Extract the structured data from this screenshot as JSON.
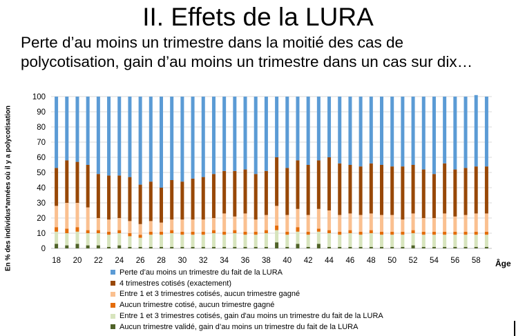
{
  "slide": {
    "title": "II. Effets de la LURA",
    "subtitle": "Perte d’au moins un trimestre dans la moitié des cas de polycotisation, gain d’au moins un trimestre dans un cas sur dix…"
  },
  "chart_data": {
    "type": "bar",
    "stacked": true,
    "ylabel": "En % des individus*années où il y a polycotisation",
    "xlabel": "Âge",
    "ylim": [
      0,
      100
    ],
    "yticks": [
      0,
      10,
      20,
      30,
      40,
      50,
      60,
      70,
      80,
      90,
      100
    ],
    "grid": true,
    "legend_position": "bottom",
    "x": [
      18,
      19,
      20,
      21,
      22,
      23,
      24,
      25,
      26,
      27,
      28,
      29,
      30,
      31,
      32,
      33,
      34,
      35,
      36,
      37,
      38,
      39,
      40,
      41,
      42,
      43,
      44,
      45,
      46,
      47,
      48,
      49,
      50,
      51,
      52,
      53,
      54,
      55,
      56,
      57,
      58,
      59
    ],
    "xticks": [
      18,
      20,
      22,
      24,
      26,
      28,
      30,
      32,
      34,
      36,
      38,
      40,
      42,
      44,
      46,
      48,
      50,
      52,
      54,
      56,
      58
    ],
    "series": [
      {
        "name": "Aucun trimestre validé, gain d’au moins un trimestre du fait de la LURA",
        "color": "#4f6228",
        "values": [
          3,
          2,
          3,
          2,
          2,
          1,
          2,
          1,
          1,
          1,
          1,
          1,
          1,
          1,
          1,
          1,
          1,
          1,
          1,
          1,
          1,
          4,
          1,
          3,
          1,
          3,
          1,
          1,
          1,
          1,
          1,
          1,
          1,
          1,
          2,
          1,
          1,
          1,
          1,
          1,
          1,
          1
        ]
      },
      {
        "name": "Entre 1 et 3 trimestres cotisés, gain d'au moins un trimestre du fait de la LURA",
        "color": "#d7e4bd",
        "values": [
          8,
          8,
          8,
          8,
          8,
          8,
          8,
          7,
          6,
          8,
          8,
          9,
          8,
          8,
          8,
          9,
          8,
          9,
          8,
          8,
          9,
          8,
          8,
          8,
          8,
          8,
          9,
          8,
          9,
          8,
          9,
          8,
          8,
          8,
          8,
          8,
          8,
          8,
          8,
          8,
          8,
          8
        ]
      },
      {
        "name": "Aucun trimestre cotisé, aucun trimestre gagné",
        "color": "#e46c0a",
        "values": [
          3,
          3,
          3,
          2,
          2,
          2,
          2,
          2,
          2,
          2,
          2,
          2,
          2,
          2,
          2,
          2,
          2,
          2,
          2,
          2,
          2,
          3,
          2,
          3,
          2,
          2,
          2,
          2,
          2,
          2,
          2,
          2,
          2,
          2,
          2,
          2,
          2,
          2,
          2,
          2,
          2,
          2
        ]
      },
      {
        "name": "Entre 1 et 3 trimestres cotisés, aucun trimestre gagné",
        "color": "#fac090",
        "values": [
          14,
          17,
          16,
          15,
          8,
          8,
          8,
          8,
          7,
          7,
          6,
          7,
          8,
          8,
          8,
          8,
          12,
          9,
          12,
          8,
          10,
          13,
          11,
          12,
          11,
          13,
          13,
          11,
          11,
          11,
          11,
          11,
          11,
          8,
          11,
          9,
          9,
          12,
          10,
          11,
          12,
          12
        ]
      },
      {
        "name": "4 trimestres cotisés (exactement)",
        "color": "#984807",
        "values": [
          25,
          28,
          27,
          28,
          29,
          29,
          28,
          29,
          26,
          26,
          23,
          26,
          25,
          27,
          28,
          29,
          28,
          30,
          29,
          30,
          29,
          32,
          31,
          32,
          33,
          32,
          35,
          34,
          32,
          32,
          33,
          33,
          32,
          35,
          32,
          32,
          29,
          33,
          31,
          31,
          31,
          31
        ]
      },
      {
        "name": "Perte d’au moins un trimestre du fait de la LURA",
        "color": "#5b9bd5",
        "values": [
          47,
          42,
          43,
          45,
          51,
          52,
          52,
          53,
          58,
          56,
          60,
          55,
          56,
          54,
          53,
          51,
          49,
          49,
          48,
          51,
          49,
          40,
          47,
          42,
          45,
          42,
          40,
          44,
          45,
          46,
          44,
          45,
          46,
          46,
          45,
          48,
          51,
          44,
          48,
          47,
          47,
          46
        ]
      }
    ]
  }
}
